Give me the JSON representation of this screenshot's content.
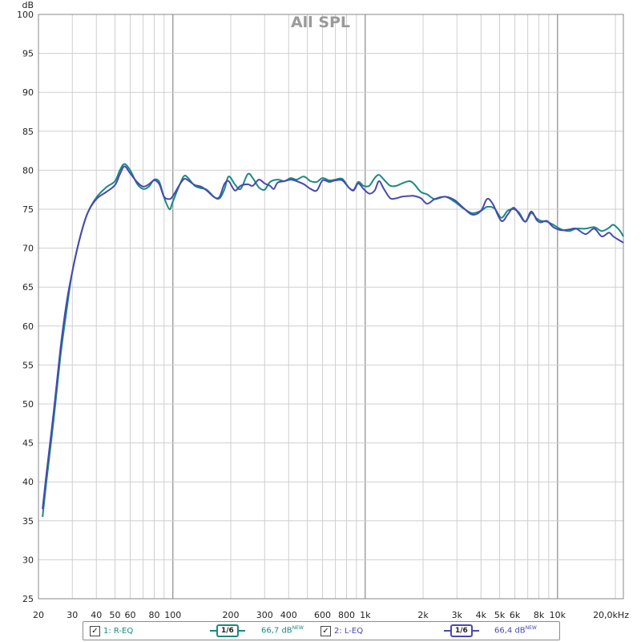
{
  "chart_data": {
    "type": "line",
    "title": "All SPL",
    "ylabel": "dB",
    "xscale": "log",
    "xlim": [
      20,
      22000
    ],
    "ylim": [
      25,
      100
    ],
    "y_ticks": [
      25,
      30,
      35,
      40,
      45,
      50,
      55,
      60,
      65,
      70,
      75,
      80,
      85,
      90,
      95,
      100
    ],
    "x_ticks": [
      {
        "v": 20,
        "label": "20"
      },
      {
        "v": 30,
        "label": "30"
      },
      {
        "v": 40,
        "label": "40"
      },
      {
        "v": 50,
        "label": "50"
      },
      {
        "v": 60,
        "label": "60"
      },
      {
        "v": 80,
        "label": "80"
      },
      {
        "v": 100,
        "label": "100"
      },
      {
        "v": 200,
        "label": "200"
      },
      {
        "v": 300,
        "label": "300"
      },
      {
        "v": 400,
        "label": "400"
      },
      {
        "v": 600,
        "label": "600"
      },
      {
        "v": 800,
        "label": "800"
      },
      {
        "v": 1000,
        "label": "1k"
      },
      {
        "v": 2000,
        "label": "2k"
      },
      {
        "v": 3000,
        "label": "3k"
      },
      {
        "v": 4000,
        "label": "4k"
      },
      {
        "v": 5000,
        "label": "5k"
      },
      {
        "v": 6000,
        "label": "6k"
      },
      {
        "v": 8000,
        "label": "8k"
      },
      {
        "v": 10000,
        "label": "10k"
      },
      {
        "v": 20000,
        "label": "20,0kHz"
      }
    ],
    "grid": true,
    "series": [
      {
        "name": "R-EQ",
        "color": "#1a8a80",
        "points": [
          [
            21,
            35.5
          ],
          [
            22,
            40
          ],
          [
            24,
            48
          ],
          [
            26,
            56
          ],
          [
            28,
            62
          ],
          [
            30,
            67
          ],
          [
            33,
            71.5
          ],
          [
            36,
            74.5
          ],
          [
            40,
            76.5
          ],
          [
            45,
            77.8
          ],
          [
            50,
            78.6
          ],
          [
            53,
            80
          ],
          [
            56,
            80.8
          ],
          [
            60,
            80
          ],
          [
            65,
            78.3
          ],
          [
            70,
            77.6
          ],
          [
            75,
            77.9
          ],
          [
            80,
            78.8
          ],
          [
            85,
            78.5
          ],
          [
            90,
            76.5
          ],
          [
            96,
            75
          ],
          [
            100,
            76
          ],
          [
            110,
            78.5
          ],
          [
            115,
            79.3
          ],
          [
            120,
            79
          ],
          [
            130,
            78
          ],
          [
            140,
            77.7
          ],
          [
            150,
            77.5
          ],
          [
            165,
            76.5
          ],
          [
            175,
            76.4
          ],
          [
            185,
            77.5
          ],
          [
            195,
            79.2
          ],
          [
            210,
            78.2
          ],
          [
            225,
            77.6
          ],
          [
            245,
            79.5
          ],
          [
            260,
            79
          ],
          [
            280,
            77.8
          ],
          [
            300,
            77.5
          ],
          [
            320,
            78.5
          ],
          [
            350,
            78.8
          ],
          [
            380,
            78.6
          ],
          [
            410,
            79
          ],
          [
            440,
            78.8
          ],
          [
            480,
            79.2
          ],
          [
            520,
            78.6
          ],
          [
            560,
            78.5
          ],
          [
            600,
            79
          ],
          [
            650,
            78.7
          ],
          [
            700,
            78.8
          ],
          [
            760,
            78.9
          ],
          [
            820,
            77.8
          ],
          [
            870,
            77.5
          ],
          [
            920,
            78.5
          ],
          [
            980,
            78
          ],
          [
            1050,
            78
          ],
          [
            1120,
            79
          ],
          [
            1180,
            79.4
          ],
          [
            1250,
            78.8
          ],
          [
            1350,
            78
          ],
          [
            1450,
            78
          ],
          [
            1550,
            78.3
          ],
          [
            1700,
            78.6
          ],
          [
            1800,
            78.2
          ],
          [
            1950,
            77.2
          ],
          [
            2100,
            76.9
          ],
          [
            2300,
            76.3
          ],
          [
            2600,
            76.6
          ],
          [
            2900,
            76
          ],
          [
            3200,
            75.2
          ],
          [
            3600,
            74.5
          ],
          [
            4000,
            74.8
          ],
          [
            4300,
            75.3
          ],
          [
            4700,
            75.1
          ],
          [
            5100,
            73.9
          ],
          [
            5500,
            74.8
          ],
          [
            5900,
            75
          ],
          [
            6300,
            74.6
          ],
          [
            6800,
            73.4
          ],
          [
            7300,
            74.5
          ],
          [
            7800,
            73.8
          ],
          [
            8200,
            73.5
          ],
          [
            8800,
            73.4
          ],
          [
            9500,
            73
          ],
          [
            10500,
            72.4
          ],
          [
            11500,
            72.2
          ],
          [
            12500,
            72.5
          ],
          [
            14000,
            72.5
          ],
          [
            15500,
            72.7
          ],
          [
            17000,
            72.2
          ],
          [
            18500,
            72.6
          ],
          [
            19500,
            73
          ],
          [
            21000,
            72.3
          ],
          [
            22000,
            71.5
          ]
        ]
      },
      {
        "name": "L-EQ",
        "color": "#4848b0",
        "points": [
          [
            21,
            36.5
          ],
          [
            22,
            41
          ],
          [
            24,
            49
          ],
          [
            26,
            57
          ],
          [
            28,
            63
          ],
          [
            30,
            67
          ],
          [
            33,
            71.5
          ],
          [
            36,
            74.5
          ],
          [
            40,
            76.3
          ],
          [
            45,
            77.2
          ],
          [
            50,
            78.1
          ],
          [
            53,
            79.5
          ],
          [
            56,
            80.5
          ],
          [
            60,
            79.6
          ],
          [
            65,
            78.5
          ],
          [
            70,
            77.9
          ],
          [
            75,
            78.2
          ],
          [
            80,
            78.7
          ],
          [
            85,
            78.2
          ],
          [
            90,
            76.6
          ],
          [
            96,
            76.3
          ],
          [
            100,
            76.7
          ],
          [
            110,
            78.4
          ],
          [
            115,
            78.9
          ],
          [
            120,
            78.7
          ],
          [
            130,
            78.1
          ],
          [
            140,
            77.9
          ],
          [
            150,
            77.4
          ],
          [
            165,
            76.5
          ],
          [
            175,
            76.6
          ],
          [
            185,
            78.2
          ],
          [
            195,
            78.6
          ],
          [
            210,
            77.4
          ],
          [
            225,
            78
          ],
          [
            245,
            78.2
          ],
          [
            260,
            78
          ],
          [
            280,
            78.8
          ],
          [
            300,
            78.3
          ],
          [
            320,
            78
          ],
          [
            335,
            77.6
          ],
          [
            350,
            78.4
          ],
          [
            380,
            78.6
          ],
          [
            410,
            78.8
          ],
          [
            440,
            78.6
          ],
          [
            480,
            78.2
          ],
          [
            520,
            77.6
          ],
          [
            560,
            77.4
          ],
          [
            600,
            78.7
          ],
          [
            650,
            78.5
          ],
          [
            700,
            78.7
          ],
          [
            760,
            78.7
          ],
          [
            820,
            77.8
          ],
          [
            870,
            77.4
          ],
          [
            920,
            78.3
          ],
          [
            980,
            77.6
          ],
          [
            1050,
            77
          ],
          [
            1120,
            77.4
          ],
          [
            1180,
            78.6
          ],
          [
            1250,
            77.6
          ],
          [
            1350,
            76.4
          ],
          [
            1450,
            76.4
          ],
          [
            1550,
            76.6
          ],
          [
            1700,
            76.7
          ],
          [
            1800,
            76.7
          ],
          [
            1950,
            76.4
          ],
          [
            2100,
            75.7
          ],
          [
            2300,
            76.3
          ],
          [
            2600,
            76.6
          ],
          [
            2900,
            76.2
          ],
          [
            3200,
            75.3
          ],
          [
            3600,
            74.3
          ],
          [
            4000,
            74.8
          ],
          [
            4300,
            76.3
          ],
          [
            4600,
            75.7
          ],
          [
            5100,
            73.5
          ],
          [
            5500,
            74.3
          ],
          [
            5900,
            75.2
          ],
          [
            6300,
            74.4
          ],
          [
            6800,
            73.4
          ],
          [
            7300,
            74.7
          ],
          [
            7800,
            73.6
          ],
          [
            8200,
            73.3
          ],
          [
            8800,
            73.5
          ],
          [
            9500,
            72.7
          ],
          [
            10500,
            72.3
          ],
          [
            11500,
            72.4
          ],
          [
            12500,
            72.5
          ],
          [
            14000,
            71.8
          ],
          [
            15500,
            72.5
          ],
          [
            17000,
            71.5
          ],
          [
            18500,
            72
          ],
          [
            19500,
            71.5
          ],
          [
            21000,
            71
          ],
          [
            22000,
            70.7
          ]
        ]
      }
    ]
  },
  "legend": {
    "items": [
      {
        "checked": true,
        "check_glyph": "✓",
        "label": "1: R-EQ",
        "smoothing": "1/6",
        "value": "66,7 dB",
        "badge": "NEW",
        "color": "#1a8a80"
      },
      {
        "checked": true,
        "check_glyph": "✓",
        "label": "2: L-EQ",
        "smoothing": "1/6",
        "value": "66,4 dB",
        "badge": "NEW",
        "color": "#4848b0"
      }
    ]
  }
}
